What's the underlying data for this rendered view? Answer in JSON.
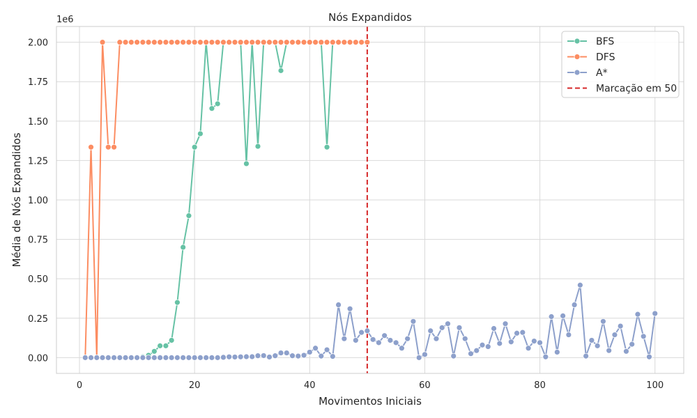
{
  "chart_data": {
    "type": "line",
    "title": "Nós Expandidos",
    "xlabel": "Movimentos Iniciais",
    "ylabel": "Média de Nós Expandidos",
    "y_offset_label": "1e6",
    "xlim": [
      -4,
      105
    ],
    "ylim": [
      -0.1,
      2.1
    ],
    "xticks": [
      0,
      20,
      40,
      60,
      80,
      100
    ],
    "xtick_labels": [
      "0",
      "20",
      "40",
      "60",
      "80",
      "100"
    ],
    "yticks": [
      0,
      0.25,
      0.5,
      0.75,
      1.0,
      1.25,
      1.5,
      1.75,
      2.0
    ],
    "ytick_labels": [
      "0.00",
      "0.25",
      "0.50",
      "0.75",
      "1.00",
      "1.25",
      "1.50",
      "1.75",
      "2.00"
    ],
    "grid": true,
    "legend_position": "top-right",
    "vline": {
      "x": 50,
      "label": "Marcação em 50",
      "color": "#d62728"
    },
    "series": [
      {
        "name": "BFS",
        "color": "#66c2a5",
        "x": [
          1,
          2,
          3,
          4,
          5,
          6,
          7,
          8,
          9,
          10,
          11,
          12,
          13,
          14,
          15,
          16,
          17,
          18,
          19,
          20,
          21,
          22,
          23,
          24,
          25,
          26,
          27,
          28,
          29,
          30,
          31,
          32,
          33,
          34,
          35,
          36,
          37,
          38,
          39,
          40,
          41,
          42,
          43,
          44,
          45,
          46,
          47,
          48,
          49,
          50
        ],
        "y": [
          0,
          0,
          0,
          0,
          0,
          0,
          0,
          0,
          0.001,
          0.002,
          0.005,
          0.015,
          0.04,
          0.075,
          0.075,
          0.11,
          0.35,
          0.7,
          0.9,
          1.335,
          1.42,
          2.0,
          1.58,
          1.61,
          2.0,
          2.0,
          2.0,
          2.0,
          1.23,
          2.0,
          1.34,
          2.0,
          2.0,
          2.0,
          1.82,
          2.0,
          2.0,
          2.0,
          2.0,
          2.0,
          2.0,
          2.0,
          1.335,
          2.0,
          2.0,
          2.0,
          2.0,
          2.0,
          2.0,
          2.0
        ]
      },
      {
        "name": "DFS",
        "color": "#fc8d62",
        "x": [
          1,
          2,
          3,
          4,
          5,
          6,
          7,
          8,
          9,
          10,
          11,
          12,
          13,
          14,
          15,
          16,
          17,
          18,
          19,
          20,
          21,
          22,
          23,
          24,
          25,
          26,
          27,
          28,
          29,
          30,
          31,
          32,
          33,
          34,
          35,
          36,
          37,
          38,
          39,
          40,
          41,
          42,
          43,
          44,
          45,
          46,
          47,
          48,
          49,
          50
        ],
        "y": [
          0,
          1.335,
          0,
          2.0,
          1.335,
          1.335,
          2.0,
          2.0,
          2.0,
          2.0,
          2.0,
          2.0,
          2.0,
          2.0,
          2.0,
          2.0,
          2.0,
          2.0,
          2.0,
          2.0,
          2.0,
          2.0,
          2.0,
          2.0,
          2.0,
          2.0,
          2.0,
          2.0,
          2.0,
          2.0,
          2.0,
          2.0,
          2.0,
          2.0,
          2.0,
          2.0,
          2.0,
          2.0,
          2.0,
          2.0,
          2.0,
          2.0,
          2.0,
          2.0,
          2.0,
          2.0,
          2.0,
          2.0,
          2.0,
          2.0
        ]
      },
      {
        "name": "A*",
        "color": "#8da0cb",
        "x": [
          1,
          2,
          3,
          4,
          5,
          6,
          7,
          8,
          9,
          10,
          11,
          12,
          13,
          14,
          15,
          16,
          17,
          18,
          19,
          20,
          21,
          22,
          23,
          24,
          25,
          26,
          27,
          28,
          29,
          30,
          31,
          32,
          33,
          34,
          35,
          36,
          37,
          38,
          39,
          40,
          41,
          42,
          43,
          44,
          45,
          46,
          47,
          48,
          49,
          50,
          51,
          52,
          53,
          54,
          55,
          56,
          57,
          58,
          59,
          60,
          61,
          62,
          63,
          64,
          65,
          66,
          67,
          68,
          69,
          70,
          71,
          72,
          73,
          74,
          75,
          76,
          77,
          78,
          79,
          80,
          81,
          82,
          83,
          84,
          85,
          86,
          87,
          88,
          89,
          90,
          91,
          92,
          93,
          94,
          95,
          96,
          97,
          98,
          99,
          100
        ],
        "y": [
          0,
          0,
          0,
          0,
          0,
          0,
          0,
          0,
          0,
          0,
          0,
          0,
          0,
          0,
          0,
          0,
          0,
          0,
          0,
          0,
          0,
          0,
          0,
          0,
          0.002,
          0.005,
          0.004,
          0.005,
          0.006,
          0.006,
          0.012,
          0.013,
          0.004,
          0.012,
          0.03,
          0.03,
          0.012,
          0.01,
          0.015,
          0.035,
          0.06,
          0.01,
          0.05,
          0.008,
          0.335,
          0.12,
          0.31,
          0.11,
          0.16,
          0.17,
          0.115,
          0.095,
          0.14,
          0.11,
          0.095,
          0.06,
          0.12,
          0.23,
          0,
          0.02,
          0.17,
          0.12,
          0.19,
          0.215,
          0.01,
          0.19,
          0.12,
          0.025,
          0.045,
          0.08,
          0.07,
          0.185,
          0.09,
          0.215,
          0.1,
          0.155,
          0.16,
          0.06,
          0.105,
          0.095,
          0.005,
          0.26,
          0.035,
          0.265,
          0.145,
          0.335,
          0.46,
          0.01,
          0.11,
          0.075,
          0.23,
          0.045,
          0.145,
          0.2,
          0.04,
          0.085,
          0.275,
          0.135,
          0.005,
          0.28
        ]
      }
    ]
  }
}
